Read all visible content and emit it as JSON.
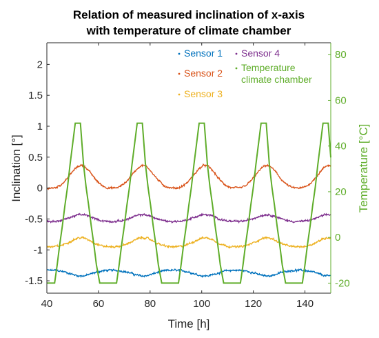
{
  "chart_data": {
    "type": "line",
    "title": [
      "Relation of measured inclination of x-axis",
      "with temperature of climate chamber"
    ],
    "xlabel": "Time [h]",
    "ylabel_left": "Inclination [°]",
    "ylabel_right": "Temperature [°C]",
    "xlim": [
      40,
      150
    ],
    "ylim_left": [
      -1.7,
      2.35
    ],
    "ylim_right": [
      -24.4,
      85.2
    ],
    "x_ticks": [
      40,
      60,
      80,
      100,
      120,
      140
    ],
    "y_ticks_left": [
      -1.5,
      -1,
      -0.5,
      0,
      0.5,
      1,
      1.5,
      2
    ],
    "y_ticks_left_labels": [
      "-1.5",
      "-1",
      "-0.5",
      "0",
      "0.5",
      "1",
      "1.5",
      "2"
    ],
    "y_ticks_right": [
      -20,
      0,
      20,
      40,
      60,
      80
    ],
    "legend_position": "top-right",
    "colors": {
      "sensor1": "#0072BD",
      "sensor2": "#D95319",
      "sensor3": "#EDB120",
      "sensor4": "#7E2F8E",
      "temperature": "#5FAD2A",
      "right_axis": "#5FAD2A",
      "left_axis": "#262626"
    },
    "cycle_period_h": 24,
    "cycle_peaks_h": [
      52,
      76,
      100,
      124,
      148
    ],
    "temperature_profile_offsets_h": [
      -12,
      -10.5,
      -9,
      -8,
      -7,
      -6,
      -5,
      -4,
      -3,
      -1,
      0,
      1,
      2.2,
      3.2,
      4.2,
      5.2,
      6.2,
      7.2,
      8.5,
      10.5,
      12
    ],
    "temperature_profile_values_c": [
      -20,
      -20,
      -20,
      -12,
      -3,
      5,
      14,
      22,
      32,
      50,
      50,
      50,
      32,
      22,
      14,
      5,
      -3,
      -12,
      -20,
      -20,
      -20
    ],
    "series": [
      {
        "name": "Sensor 1",
        "axis": "left",
        "mean": -1.38,
        "amplitude": 0.05,
        "min_at_peak_offset_h": 0,
        "noise": 0.025
      },
      {
        "name": "Sensor 2",
        "axis": "left",
        "mean": 0.2,
        "amplitude": 0.2,
        "start_value": 0,
        "peak_value": 0.45,
        "trough_value": 0.01,
        "noise": 0.025
      },
      {
        "name": "Sensor 3",
        "axis": "left",
        "mean": -0.87,
        "amplitude": 0.08,
        "noise": 0.025
      },
      {
        "name": "Sensor 4",
        "axis": "left",
        "mean": -0.48,
        "amplitude": 0.06,
        "noise": 0.025
      },
      {
        "name": "Temperature climate chamber",
        "legend_lines": [
          "Temperature",
          "climate chamber"
        ],
        "axis": "right",
        "min": -20,
        "max": 50
      }
    ]
  }
}
